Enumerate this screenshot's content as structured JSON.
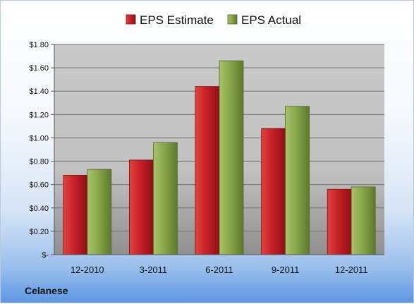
{
  "chart_data": {
    "type": "bar",
    "title": "",
    "xlabel": "",
    "ylabel": "",
    "categories": [
      "12-2010",
      "3-2011",
      "6-2011",
      "9-2011",
      "12-2011"
    ],
    "series": [
      {
        "name": "EPS Estimate",
        "color": "#c62027",
        "values": [
          0.68,
          0.81,
          1.44,
          1.08,
          0.56
        ]
      },
      {
        "name": "EPS Actual",
        "color": "#8aa64a",
        "values": [
          0.73,
          0.96,
          1.66,
          1.27,
          0.58
        ]
      }
    ],
    "ylim": [
      0,
      1.8
    ],
    "yticks": [
      0,
      0.2,
      0.4,
      0.6,
      0.8,
      1.0,
      1.2,
      1.4,
      1.6,
      1.8
    ],
    "ytick_labels": [
      "$-",
      "$0.20",
      "$0.40",
      "$0.60",
      "$0.80",
      "$1.00",
      "$1.20",
      "$1.40",
      "$1.60",
      "$1.80"
    ],
    "grid": true,
    "legend_position": "top-center",
    "footer_label": "Celanese"
  }
}
